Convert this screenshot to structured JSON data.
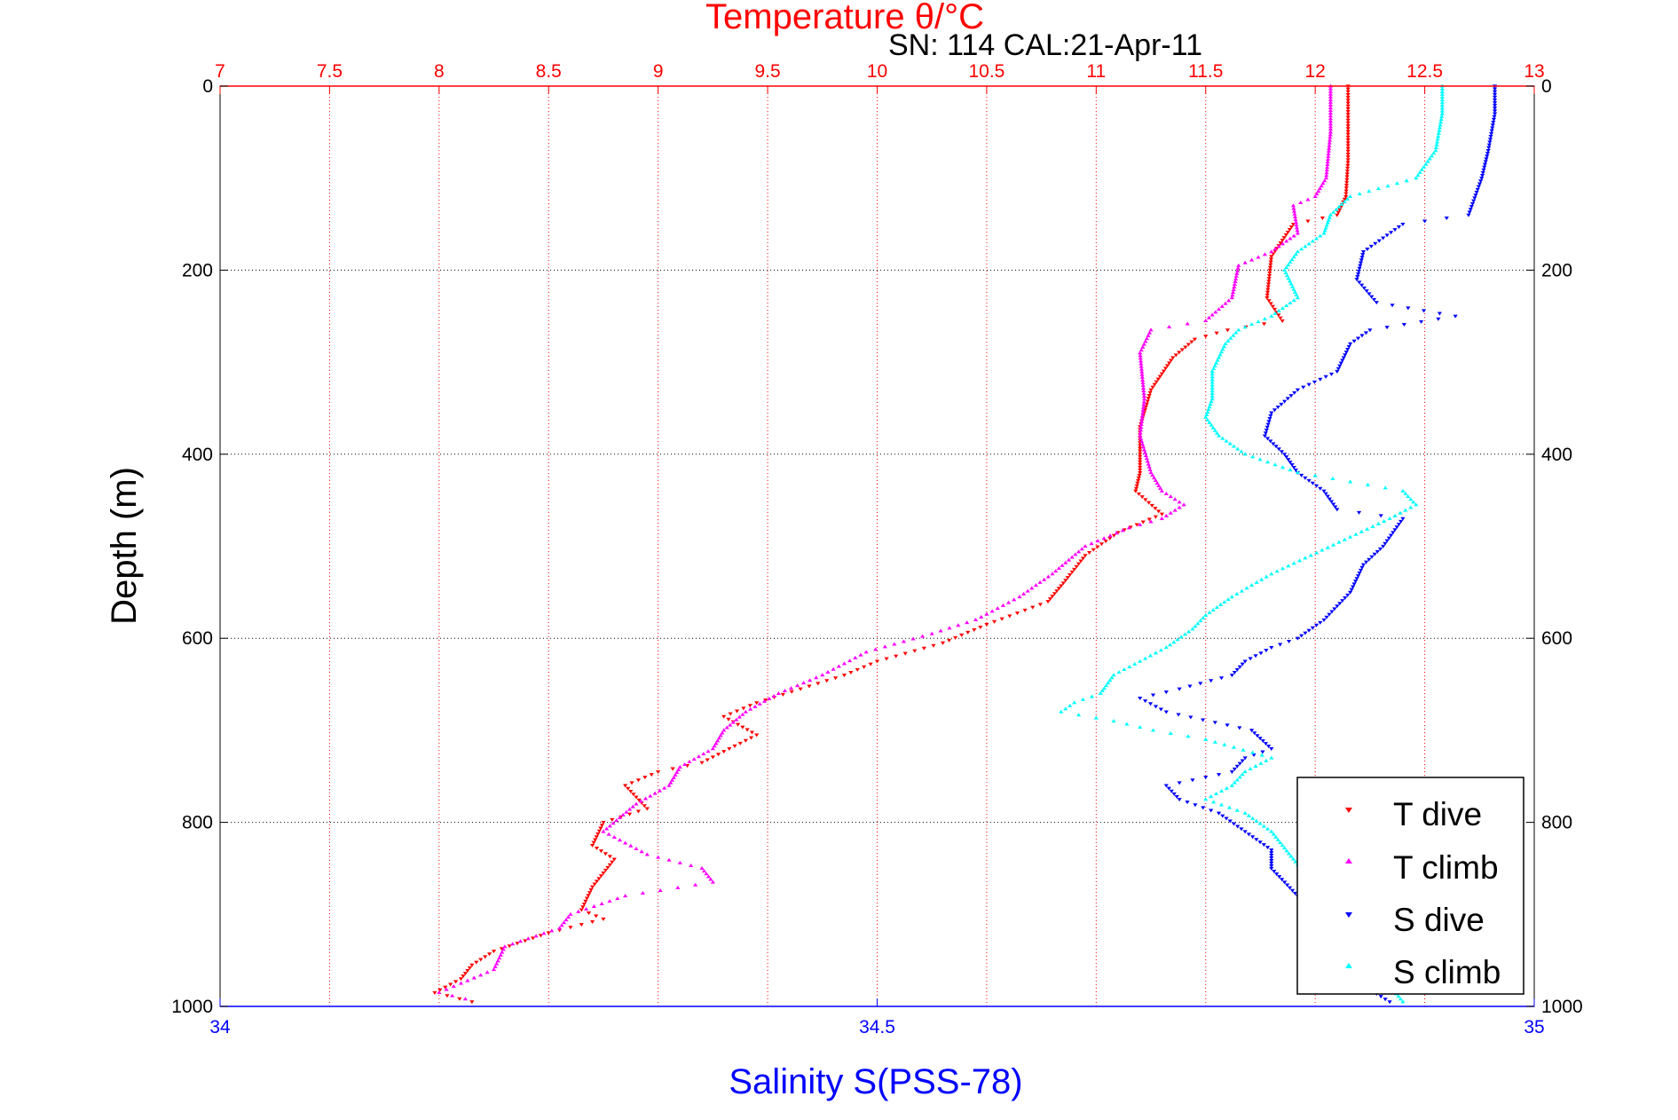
{
  "chart_data": {
    "type": "scatter",
    "title": "Temperature θ/°C",
    "subtitle": "SN: 114  CAL:21-Apr-11",
    "ylabel": "Depth (m)",
    "xlabel": "Salinity S(PSS-78)",
    "y_axis": {
      "range": [
        0,
        1000
      ],
      "reversed": true,
      "ticks": [
        "0",
        "200",
        "400",
        "600",
        "800",
        "1000"
      ],
      "tick_values": [
        0,
        200,
        400,
        600,
        800,
        1000
      ]
    },
    "temperature_axis": {
      "position": "top",
      "range": [
        7,
        13
      ],
      "ticks": [
        "7",
        "7.5",
        "8",
        "8.5",
        "9",
        "9.5",
        "10",
        "10.5",
        "11",
        "11.5",
        "12",
        "12.5",
        "13"
      ],
      "tick_values": [
        7,
        7.5,
        8,
        8.5,
        9,
        9.5,
        10,
        10.5,
        11,
        11.5,
        12,
        12.5,
        13
      ],
      "grid": true,
      "color": "#ff0000"
    },
    "salinity_axis": {
      "position": "bottom",
      "range": [
        34,
        35
      ],
      "ticks": [
        "34",
        "34.5",
        "35"
      ],
      "tick_values": [
        34,
        34.5,
        35
      ],
      "color": "#0000ff"
    },
    "grid": true,
    "legend": {
      "position": "bottom-right",
      "entries": [
        "T dive",
        "T climb",
        "S dive",
        "S climb"
      ]
    },
    "series": [
      {
        "name": "T dive",
        "axis": "temperature",
        "marker": "down-triangle",
        "color": "#ff0000",
        "points": [
          [
            12.15,
            0
          ],
          [
            12.15,
            40
          ],
          [
            12.15,
            80
          ],
          [
            12.14,
            120
          ],
          [
            12.1,
            140
          ],
          [
            11.9,
            150
          ],
          [
            11.8,
            185
          ],
          [
            11.78,
            230
          ],
          [
            11.85,
            255
          ],
          [
            11.6,
            265
          ],
          [
            11.45,
            275
          ],
          [
            11.35,
            295
          ],
          [
            11.25,
            330
          ],
          [
            11.2,
            370
          ],
          [
            11.2,
            420
          ],
          [
            11.18,
            440
          ],
          [
            11.3,
            465
          ],
          [
            11.1,
            485
          ],
          [
            10.95,
            510
          ],
          [
            10.85,
            540
          ],
          [
            10.78,
            560
          ],
          [
            10.5,
            585
          ],
          [
            10.3,
            605
          ],
          [
            10.0,
            625
          ],
          [
            9.85,
            640
          ],
          [
            9.65,
            655
          ],
          [
            9.45,
            670
          ],
          [
            9.3,
            685
          ],
          [
            9.45,
            705
          ],
          [
            9.2,
            735
          ],
          [
            9.0,
            745
          ],
          [
            8.85,
            760
          ],
          [
            8.95,
            785
          ],
          [
            8.75,
            800
          ],
          [
            8.7,
            825
          ],
          [
            8.8,
            840
          ],
          [
            8.7,
            870
          ],
          [
            8.65,
            895
          ],
          [
            8.75,
            905
          ],
          [
            8.5,
            920
          ],
          [
            8.25,
            940
          ],
          [
            8.15,
            955
          ],
          [
            8.1,
            970
          ],
          [
            7.98,
            985
          ],
          [
            8.15,
            995
          ]
        ]
      },
      {
        "name": "T climb",
        "axis": "temperature",
        "marker": "up-triangle",
        "color": "#ff00ff",
        "points": [
          [
            12.07,
            0
          ],
          [
            12.07,
            50
          ],
          [
            12.05,
            100
          ],
          [
            12.0,
            120
          ],
          [
            11.9,
            130
          ],
          [
            11.92,
            160
          ],
          [
            11.8,
            180
          ],
          [
            11.65,
            195
          ],
          [
            11.62,
            230
          ],
          [
            11.5,
            255
          ],
          [
            11.25,
            265
          ],
          [
            11.2,
            290
          ],
          [
            11.22,
            340
          ],
          [
            11.2,
            380
          ],
          [
            11.25,
            420
          ],
          [
            11.3,
            440
          ],
          [
            11.4,
            455
          ],
          [
            11.3,
            470
          ],
          [
            11.15,
            480
          ],
          [
            10.95,
            500
          ],
          [
            10.8,
            530
          ],
          [
            10.65,
            555
          ],
          [
            10.45,
            580
          ],
          [
            10.25,
            595
          ],
          [
            9.95,
            615
          ],
          [
            9.75,
            640
          ],
          [
            9.55,
            660
          ],
          [
            9.4,
            680
          ],
          [
            9.3,
            700
          ],
          [
            9.25,
            720
          ],
          [
            9.1,
            740
          ],
          [
            9.05,
            760
          ],
          [
            8.9,
            780
          ],
          [
            8.75,
            810
          ],
          [
            8.95,
            835
          ],
          [
            9.2,
            850
          ],
          [
            9.25,
            865
          ],
          [
            8.85,
            880
          ],
          [
            8.6,
            900
          ],
          [
            8.55,
            915
          ],
          [
            8.3,
            935
          ],
          [
            8.25,
            960
          ],
          [
            8.1,
            975
          ],
          [
            8.0,
            985
          ],
          [
            8.12,
            992
          ]
        ]
      },
      {
        "name": "S dive",
        "axis": "salinity",
        "marker": "down-triangle",
        "color": "#0000ff",
        "points": [
          [
            34.97,
            0
          ],
          [
            34.97,
            30
          ],
          [
            34.965,
            70
          ],
          [
            34.96,
            100
          ],
          [
            34.95,
            140
          ],
          [
            34.9,
            150
          ],
          [
            34.87,
            180
          ],
          [
            34.865,
            210
          ],
          [
            34.88,
            235
          ],
          [
            34.94,
            250
          ],
          [
            34.875,
            265
          ],
          [
            34.86,
            280
          ],
          [
            34.85,
            310
          ],
          [
            34.82,
            330
          ],
          [
            34.8,
            355
          ],
          [
            34.795,
            380
          ],
          [
            34.81,
            400
          ],
          [
            34.82,
            420
          ],
          [
            34.84,
            440
          ],
          [
            34.85,
            460
          ],
          [
            34.9,
            470
          ],
          [
            34.885,
            500
          ],
          [
            34.87,
            520
          ],
          [
            34.86,
            550
          ],
          [
            34.84,
            580
          ],
          [
            34.82,
            600
          ],
          [
            34.8,
            610
          ],
          [
            34.78,
            625
          ],
          [
            34.77,
            640
          ],
          [
            34.73,
            655
          ],
          [
            34.7,
            665
          ],
          [
            34.72,
            680
          ],
          [
            34.785,
            700
          ],
          [
            34.8,
            720
          ],
          [
            34.78,
            730
          ],
          [
            34.77,
            745
          ],
          [
            34.72,
            760
          ],
          [
            34.73,
            775
          ],
          [
            34.76,
            790
          ],
          [
            34.78,
            810
          ],
          [
            34.8,
            830
          ],
          [
            34.8,
            850
          ],
          [
            34.82,
            880
          ],
          [
            34.83,
            920
          ],
          [
            34.85,
            960
          ],
          [
            34.89,
            995
          ]
        ]
      },
      {
        "name": "S climb",
        "axis": "salinity",
        "marker": "up-triangle",
        "color": "#00ffff",
        "points": [
          [
            34.93,
            0
          ],
          [
            34.93,
            30
          ],
          [
            34.925,
            70
          ],
          [
            34.91,
            100
          ],
          [
            34.86,
            120
          ],
          [
            34.845,
            140
          ],
          [
            34.84,
            160
          ],
          [
            34.82,
            180
          ],
          [
            34.81,
            200
          ],
          [
            34.82,
            230
          ],
          [
            34.8,
            250
          ],
          [
            34.775,
            265
          ],
          [
            34.765,
            280
          ],
          [
            34.755,
            310
          ],
          [
            34.755,
            340
          ],
          [
            34.75,
            360
          ],
          [
            34.76,
            380
          ],
          [
            34.78,
            400
          ],
          [
            34.82,
            420
          ],
          [
            34.86,
            430
          ],
          [
            34.9,
            440
          ],
          [
            34.91,
            455
          ],
          [
            34.89,
            470
          ],
          [
            34.86,
            490
          ],
          [
            34.83,
            510
          ],
          [
            34.8,
            530
          ],
          [
            34.77,
            555
          ],
          [
            34.75,
            575
          ],
          [
            34.74,
            590
          ],
          [
            34.72,
            610
          ],
          [
            34.7,
            625
          ],
          [
            34.68,
            640
          ],
          [
            34.67,
            660
          ],
          [
            34.65,
            670
          ],
          [
            34.64,
            680
          ],
          [
            34.68,
            690
          ],
          [
            34.71,
            700
          ],
          [
            34.75,
            710
          ],
          [
            34.8,
            730
          ],
          [
            34.78,
            745
          ],
          [
            34.77,
            760
          ],
          [
            34.75,
            775
          ],
          [
            34.78,
            790
          ],
          [
            34.8,
            810
          ],
          [
            34.85,
            900
          ],
          [
            34.88,
            960
          ],
          [
            34.9,
            995
          ]
        ]
      }
    ]
  }
}
